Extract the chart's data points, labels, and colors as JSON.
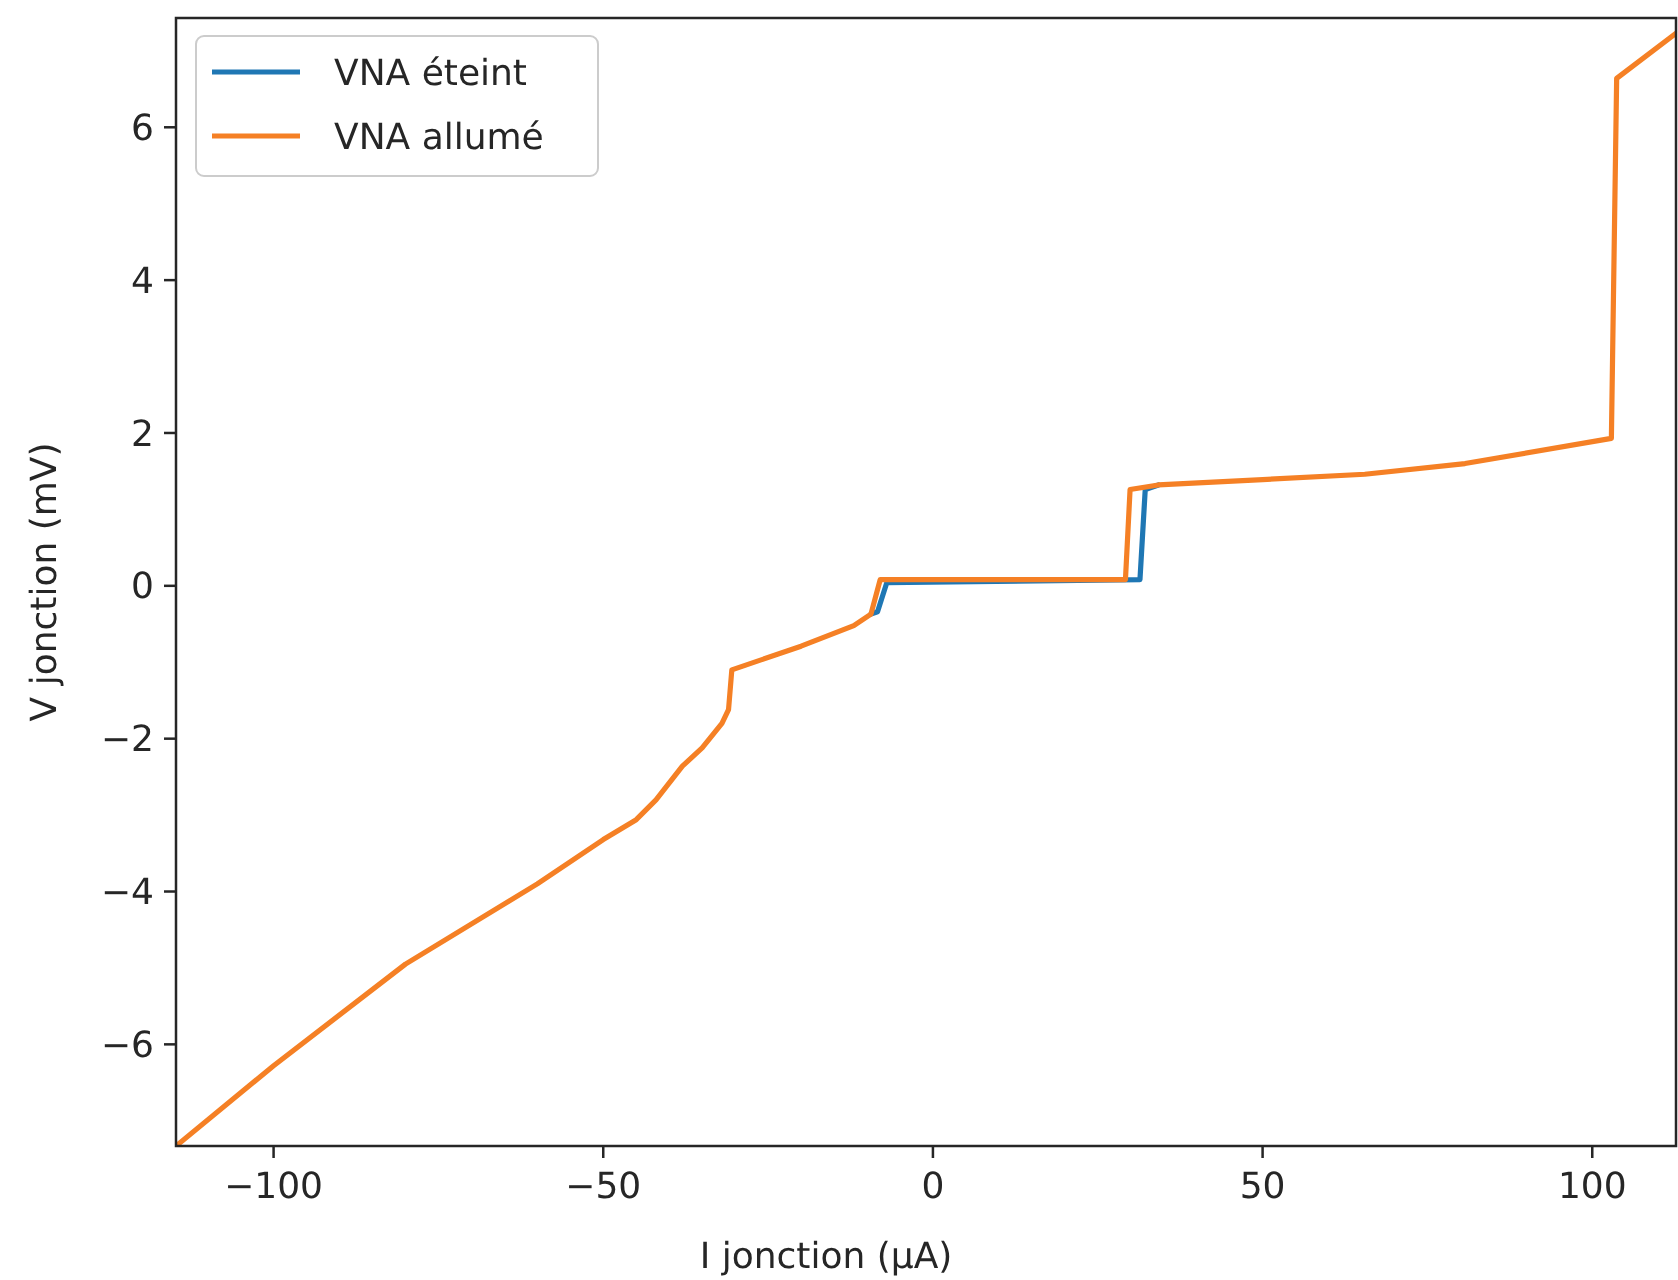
{
  "chart_data": {
    "type": "line",
    "xlabel": "I jonction (μA)",
    "ylabel": "V jonction (mV)",
    "xlim": [
      -114.8,
      112.7
    ],
    "ylim": [
      -7.33,
      7.43
    ],
    "xticks": [
      {
        "value": -100,
        "label": "−100"
      },
      {
        "value": -50,
        "label": "−50"
      },
      0,
      50,
      100
    ],
    "yticks": [
      {
        "value": -6,
        "label": "−6"
      },
      {
        "value": -4,
        "label": "−4"
      },
      {
        "value": -2,
        "label": "−2"
      },
      0,
      2,
      4,
      6
    ],
    "grid": false,
    "legend": "top left",
    "line_style": "solid",
    "marker": "none",
    "series": [
      {
        "name": "VNA éteint",
        "color": "#1f77b4",
        "x": [
          -9.4,
          -8.4,
          -7.0,
          31.4,
          32.2,
          34.2
        ],
        "values": [
          -0.37,
          -0.34,
          0.04,
          0.08,
          1.26,
          1.32
        ]
      },
      {
        "name": "VNA allumé",
        "color": "#f58025",
        "x": [
          -114.8,
          -100,
          -80,
          -60,
          -50,
          -45,
          -42,
          -38,
          -35,
          -32,
          -31,
          -30.5,
          -20,
          -12,
          -9.4,
          -8.0,
          29.2,
          29.9,
          34.2,
          50,
          65.5,
          80.7,
          102.9,
          103.7,
          112.7
        ],
        "values": [
          -7.33,
          -6.28,
          -4.95,
          -3.9,
          -3.32,
          -3.06,
          -2.8,
          -2.36,
          -2.12,
          -1.8,
          -1.62,
          -1.1,
          -0.79,
          -0.52,
          -0.37,
          0.08,
          0.08,
          1.26,
          1.32,
          1.39,
          1.46,
          1.6,
          1.93,
          6.64,
          7.23
        ]
      }
    ]
  }
}
